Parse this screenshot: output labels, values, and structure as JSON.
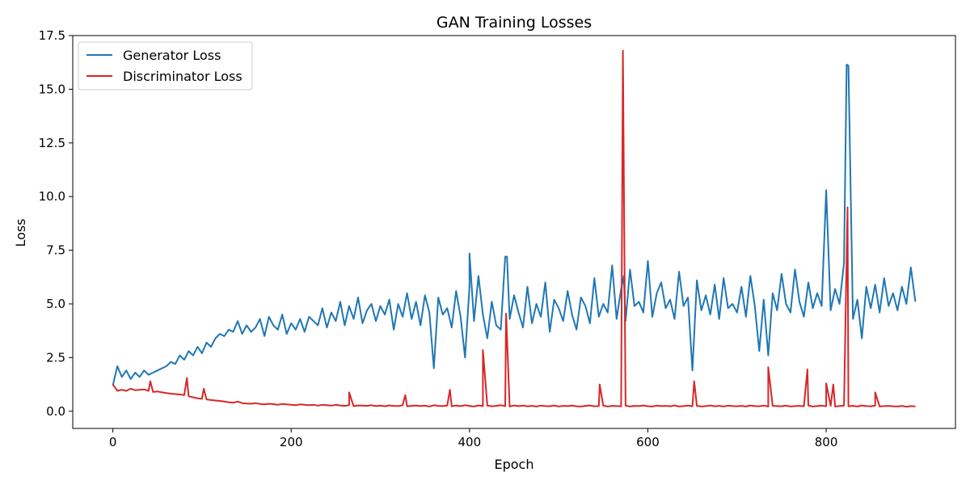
{
  "chart_data": {
    "type": "line",
    "title": "GAN Training Losses",
    "xlabel": "Epoch",
    "ylabel": "Loss",
    "xlim": [
      -45,
      945
    ],
    "ylim": [
      -0.8,
      17.5
    ],
    "xticks": [
      0,
      200,
      400,
      600,
      800
    ],
    "yticks": [
      0.0,
      2.5,
      5.0,
      7.5,
      10.0,
      12.5,
      15.0,
      17.5
    ],
    "xtick_labels": [
      "0",
      "200",
      "400",
      "600",
      "800"
    ],
    "ytick_labels": [
      "0.0",
      "2.5",
      "5.0",
      "7.5",
      "10.0",
      "12.5",
      "15.0",
      "17.5"
    ],
    "grid": false,
    "legend_position": "top-left",
    "colors": {
      "generator": "#1f77b4",
      "discriminator": "#d62728"
    },
    "x": [
      0,
      5,
      10,
      15,
      20,
      25,
      30,
      35,
      40,
      45,
      50,
      55,
      60,
      65,
      70,
      75,
      80,
      85,
      90,
      95,
      100,
      105,
      110,
      115,
      120,
      125,
      130,
      135,
      140,
      145,
      150,
      155,
      160,
      165,
      170,
      175,
      180,
      185,
      190,
      195,
      200,
      205,
      210,
      215,
      220,
      225,
      230,
      235,
      240,
      245,
      250,
      255,
      260,
      265,
      270,
      275,
      280,
      285,
      290,
      295,
      300,
      305,
      310,
      315,
      320,
      325,
      330,
      335,
      340,
      345,
      350,
      355,
      360,
      365,
      370,
      375,
      380,
      385,
      390,
      395,
      400,
      405,
      410,
      415,
      420,
      425,
      430,
      435,
      440,
      445,
      450,
      455,
      460,
      465,
      470,
      475,
      480,
      485,
      490,
      495,
      500,
      505,
      510,
      515,
      520,
      525,
      530,
      535,
      540,
      545,
      550,
      555,
      560,
      565,
      570,
      575,
      580,
      585,
      590,
      595,
      600,
      605,
      610,
      615,
      620,
      625,
      630,
      635,
      640,
      645,
      650,
      655,
      660,
      665,
      670,
      675,
      680,
      685,
      690,
      695,
      700,
      705,
      710,
      715,
      720,
      725,
      730,
      735,
      740,
      745,
      750,
      755,
      760,
      765,
      770,
      775,
      780,
      785,
      790,
      795,
      800,
      805,
      810,
      815,
      820,
      825,
      830,
      835,
      840,
      845,
      850,
      855,
      860,
      865,
      870,
      875,
      880,
      885,
      890,
      895,
      900
    ],
    "series": [
      {
        "name": "Generator Loss",
        "values": [
          1.2,
          2.1,
          1.6,
          1.9,
          1.5,
          1.8,
          1.6,
          1.9,
          1.7,
          1.8,
          1.9,
          2.0,
          2.1,
          2.3,
          2.2,
          2.6,
          2.4,
          2.8,
          2.6,
          3.0,
          2.7,
          3.2,
          3.0,
          3.4,
          3.6,
          3.5,
          3.8,
          3.7,
          4.2,
          3.6,
          4.0,
          3.7,
          3.9,
          4.3,
          3.5,
          4.4,
          4.0,
          3.8,
          4.5,
          3.6,
          4.1,
          3.8,
          4.3,
          3.7,
          4.4,
          4.2,
          4.0,
          4.8,
          3.9,
          4.6,
          4.2,
          5.1,
          4.0,
          4.9,
          4.3,
          5.3,
          4.1,
          4.7,
          5.0,
          4.2,
          4.9,
          4.5,
          5.2,
          3.8,
          5.0,
          4.4,
          5.5,
          4.3,
          5.1,
          4.0,
          5.4,
          4.6,
          2.0,
          5.3,
          4.5,
          4.8,
          3.9,
          5.6,
          4.4,
          2.5,
          5.8,
          4.2,
          6.3,
          4.5,
          3.4,
          5.1,
          4.0,
          3.8,
          7.2,
          4.3,
          5.4,
          4.6,
          3.9,
          5.8,
          4.1,
          5.0,
          4.4,
          6.0,
          3.7,
          5.2,
          4.8,
          4.2,
          5.6,
          4.5,
          3.8,
          5.3,
          4.9,
          4.1,
          6.2,
          4.4,
          5.0,
          4.6,
          6.8,
          4.3,
          5.7,
          4.2,
          6.6,
          4.9,
          5.1,
          4.6,
          7.0,
          4.4,
          5.5,
          6.0,
          4.8,
          5.2,
          4.3,
          6.5,
          4.9,
          5.3,
          1.9,
          6.1,
          4.7,
          5.4,
          4.5,
          5.9,
          4.3,
          6.2,
          4.8,
          5.0,
          4.6,
          5.8,
          4.4,
          6.3,
          4.9,
          2.8,
          5.2,
          2.6,
          5.5,
          4.7,
          6.4,
          5.0,
          4.6,
          6.6,
          5.1,
          4.4,
          6.0,
          4.8,
          5.5,
          4.9,
          10.3,
          4.7,
          5.7,
          5.0,
          6.9,
          16.1,
          4.3,
          5.2,
          3.4,
          5.8,
          4.8,
          5.9,
          4.6,
          6.2,
          4.9,
          5.5,
          4.7,
          5.8,
          5.0,
          6.7,
          5.1
        ],
        "peaks": [
          {
            "x": 400,
            "y": 7.35
          },
          {
            "x": 442,
            "y": 7.2
          },
          {
            "x": 573,
            "y": 6.3
          },
          {
            "x": 800,
            "y": 10.3
          },
          {
            "x": 823,
            "y": 16.15
          }
        ]
      },
      {
        "name": "Discriminator Loss",
        "values": [
          1.25,
          0.95,
          1.0,
          0.95,
          1.05,
          0.98,
          1.0,
          1.02,
          0.95,
          0.9,
          0.92,
          0.88,
          0.85,
          0.82,
          0.8,
          0.78,
          0.75,
          0.7,
          0.65,
          0.6,
          0.58,
          0.55,
          0.52,
          0.5,
          0.48,
          0.45,
          0.42,
          0.4,
          0.45,
          0.38,
          0.36,
          0.35,
          0.38,
          0.34,
          0.32,
          0.35,
          0.33,
          0.3,
          0.34,
          0.32,
          0.3,
          0.28,
          0.32,
          0.3,
          0.28,
          0.3,
          0.26,
          0.3,
          0.28,
          0.26,
          0.3,
          0.27,
          0.25,
          0.28,
          0.24,
          0.27,
          0.26,
          0.25,
          0.28,
          0.24,
          0.26,
          0.23,
          0.27,
          0.25,
          0.24,
          0.28,
          0.23,
          0.25,
          0.27,
          0.24,
          0.26,
          0.22,
          0.28,
          0.25,
          0.24,
          0.27,
          0.23,
          0.26,
          0.24,
          0.28,
          0.25,
          0.22,
          0.27,
          0.24,
          0.26,
          0.23,
          0.25,
          0.28,
          0.24,
          0.22,
          0.27,
          0.24,
          0.26,
          0.23,
          0.25,
          0.22,
          0.26,
          0.24,
          0.23,
          0.27,
          0.22,
          0.25,
          0.24,
          0.26,
          0.23,
          0.22,
          0.25,
          0.27,
          0.23,
          0.24,
          0.26,
          0.22,
          0.25,
          0.24,
          0.23,
          0.26,
          0.22,
          0.25,
          0.24,
          0.27,
          0.23,
          0.22,
          0.26,
          0.24,
          0.25,
          0.23,
          0.27,
          0.22,
          0.24,
          0.26,
          0.23,
          0.25,
          0.22,
          0.24,
          0.27,
          0.23,
          0.25,
          0.22,
          0.26,
          0.24,
          0.23,
          0.25,
          0.22,
          0.27,
          0.24,
          0.23,
          0.26,
          0.22,
          0.25,
          0.24,
          0.23,
          0.26,
          0.22,
          0.24,
          0.25,
          0.23,
          0.27,
          0.22,
          0.24,
          0.26,
          0.23,
          0.25,
          0.22,
          0.24,
          0.26,
          0.23,
          0.25,
          0.22,
          0.27,
          0.24,
          0.23,
          0.26,
          0.22,
          0.24,
          0.25,
          0.23,
          0.22,
          0.25,
          0.21,
          0.24,
          0.22
        ],
        "peaks": [
          {
            "x": 42,
            "y": 1.4
          },
          {
            "x": 83,
            "y": 1.55
          },
          {
            "x": 102,
            "y": 1.05
          },
          {
            "x": 265,
            "y": 0.88
          },
          {
            "x": 328,
            "y": 0.75
          },
          {
            "x": 378,
            "y": 1.0
          },
          {
            "x": 415,
            "y": 2.85
          },
          {
            "x": 441,
            "y": 4.55
          },
          {
            "x": 546,
            "y": 1.25
          },
          {
            "x": 572,
            "y": 16.8
          },
          {
            "x": 652,
            "y": 1.4
          },
          {
            "x": 735,
            "y": 2.05
          },
          {
            "x": 779,
            "y": 1.95
          },
          {
            "x": 800,
            "y": 1.3
          },
          {
            "x": 808,
            "y": 1.25
          },
          {
            "x": 824,
            "y": 9.5
          },
          {
            "x": 855,
            "y": 0.88
          }
        ]
      }
    ]
  }
}
